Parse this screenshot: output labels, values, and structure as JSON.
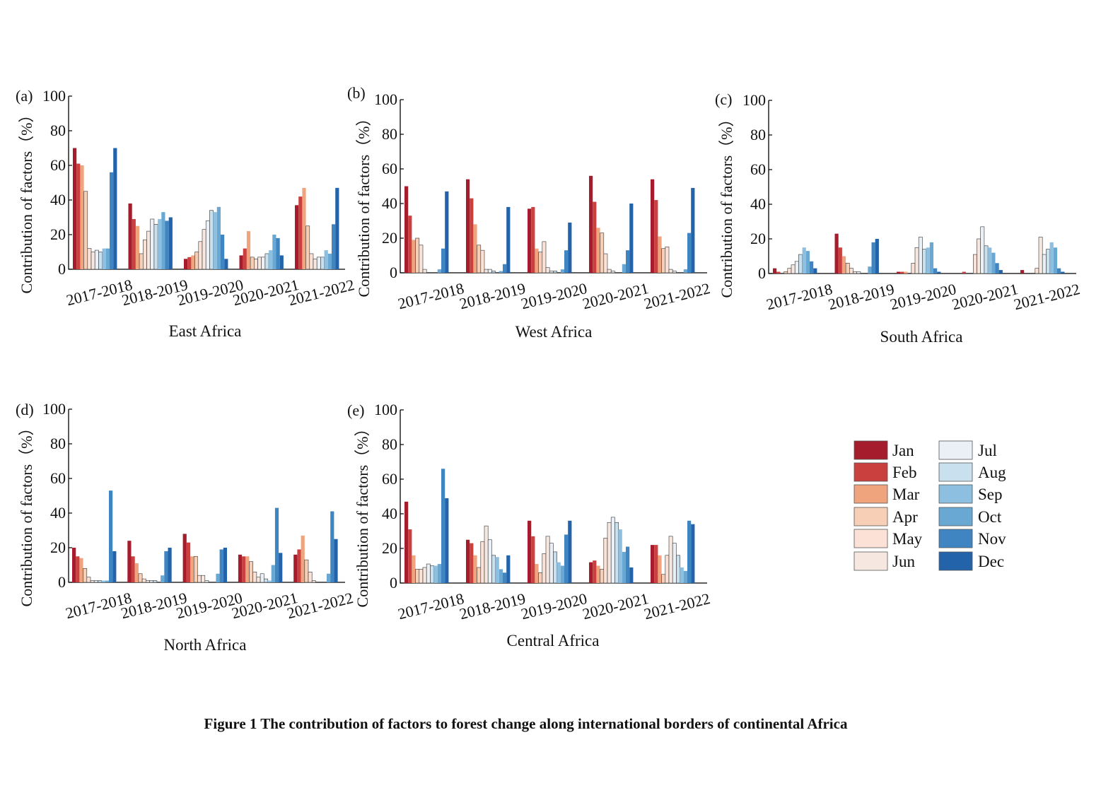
{
  "figure": {
    "caption": "Figure 1  The contribution of factors to forest change along international borders of continental Africa"
  },
  "legend": {
    "months": [
      "Jan",
      "Feb",
      "Mar",
      "Apr",
      "May",
      "Jun",
      "Jul",
      "Aug",
      "Sep",
      "Oct",
      "Nov",
      "Dec"
    ],
    "colors": [
      "#a51c2d",
      "#c9403f",
      "#efa47e",
      "#f7cfb6",
      "#fbe1d6",
      "#f6e8e1",
      "#eaf0f5",
      "#c9e0ee",
      "#8dc0e0",
      "#6aa8d4",
      "#3e85c2",
      "#2363a9"
    ]
  },
  "chart_data": [
    {
      "type": "bar",
      "panel_label": "(a)",
      "name": "East Africa",
      "ylabel": "Contribution of factors（%）",
      "ylim": [
        0,
        100
      ],
      "yticks": [
        "0",
        "20",
        "40",
        "60",
        "80",
        "100"
      ],
      "categories": [
        "2017-2018",
        "2018-2019",
        "2019-2020",
        "2020-2021",
        "2021-2022"
      ],
      "series": [
        {
          "values": [
            70,
            38,
            6,
            8,
            37
          ]
        },
        {
          "values": [
            61,
            29,
            7,
            12,
            42
          ]
        },
        {
          "values": [
            60,
            25,
            8,
            22,
            47
          ]
        },
        {
          "values": [
            45,
            9,
            10,
            7,
            25
          ]
        },
        {
          "values": [
            12,
            17,
            16,
            6,
            9
          ]
        },
        {
          "values": [
            10,
            22,
            23,
            7,
            6
          ]
        },
        {
          "values": [
            11,
            29,
            28,
            7,
            7
          ]
        },
        {
          "values": [
            10,
            26,
            34,
            9,
            7
          ]
        },
        {
          "values": [
            12,
            29,
            33,
            11,
            11
          ]
        },
        {
          "values": [
            12,
            33,
            36,
            20,
            9
          ]
        },
        {
          "values": [
            56,
            28,
            20,
            18,
            26
          ]
        },
        {
          "values": [
            70,
            30,
            6,
            8,
            47
          ]
        }
      ]
    },
    {
      "type": "bar",
      "panel_label": "(b)",
      "name": "West Africa",
      "ylabel": "Contribution of factors（%）",
      "ylim": [
        0,
        100
      ],
      "yticks": [
        "0",
        "20",
        "40",
        "60",
        "80",
        "100"
      ],
      "categories": [
        "2017-2018",
        "2018-2019",
        "2019-2020",
        "2020-2021",
        "2021-2022"
      ],
      "series": [
        {
          "values": [
            50,
            54,
            37,
            56,
            54
          ]
        },
        {
          "values": [
            33,
            43,
            38,
            41,
            42
          ]
        },
        {
          "values": [
            19,
            28,
            14,
            26,
            21
          ]
        },
        {
          "values": [
            20,
            16,
            12,
            23,
            14
          ]
        },
        {
          "values": [
            16,
            13,
            18,
            11,
            15
          ]
        },
        {
          "values": [
            2,
            2,
            3,
            2,
            2
          ]
        },
        {
          "values": [
            0,
            2,
            1,
            1,
            1
          ]
        },
        {
          "values": [
            0,
            1,
            1,
            0,
            0
          ]
        },
        {
          "values": [
            0,
            0,
            0,
            0,
            0
          ]
        },
        {
          "values": [
            2,
            1,
            2,
            5,
            2
          ]
        },
        {
          "values": [
            14,
            5,
            13,
            13,
            23
          ]
        },
        {
          "values": [
            47,
            38,
            29,
            40,
            49
          ]
        }
      ]
    },
    {
      "type": "bar",
      "panel_label": "(c)",
      "name": "South Africa",
      "ylabel": "Contribution of factors（%）",
      "ylim": [
        0,
        100
      ],
      "yticks": [
        "0",
        "20",
        "40",
        "60",
        "80",
        "100"
      ],
      "categories": [
        "2017-2018",
        "2018-2019",
        "2019-2020",
        "2020-2021",
        "2021-2022"
      ],
      "series": [
        {
          "values": [
            3,
            23,
            1,
            0,
            2
          ]
        },
        {
          "values": [
            1,
            15,
            1,
            1,
            0
          ]
        },
        {
          "values": [
            0,
            10,
            1,
            0,
            0
          ]
        },
        {
          "values": [
            1,
            6,
            0,
            0,
            0
          ]
        },
        {
          "values": [
            3,
            3,
            6,
            11,
            3
          ]
        },
        {
          "values": [
            5,
            1,
            15,
            20,
            21
          ]
        },
        {
          "values": [
            7,
            1,
            21,
            27,
            11
          ]
        },
        {
          "values": [
            11,
            0,
            14,
            16,
            14
          ]
        },
        {
          "values": [
            15,
            0,
            15,
            15,
            18
          ]
        },
        {
          "values": [
            13,
            4,
            18,
            12,
            15
          ]
        },
        {
          "values": [
            7,
            18,
            3,
            6,
            3
          ]
        },
        {
          "values": [
            3,
            20,
            1,
            2,
            1
          ]
        }
      ]
    },
    {
      "type": "bar",
      "panel_label": "(d)",
      "name": "North Africa",
      "ylabel": "Contribution of factors（%）",
      "ylim": [
        0,
        100
      ],
      "yticks": [
        "0",
        "20",
        "40",
        "60",
        "80",
        "100"
      ],
      "categories": [
        "2017-2018",
        "2018-2019",
        "2019-2020",
        "2020-2021",
        "2021-2022"
      ],
      "series": [
        {
          "values": [
            20,
            24,
            28,
            16,
            16
          ]
        },
        {
          "values": [
            15,
            15,
            23,
            15,
            19
          ]
        },
        {
          "values": [
            14,
            11,
            15,
            15,
            27
          ]
        },
        {
          "values": [
            8,
            5,
            15,
            12,
            13
          ]
        },
        {
          "values": [
            3,
            2,
            4,
            6,
            6
          ]
        },
        {
          "values": [
            1,
            1,
            4,
            3,
            1
          ]
        },
        {
          "values": [
            1,
            1,
            1,
            5,
            0
          ]
        },
        {
          "values": [
            1,
            1,
            0,
            2,
            0
          ]
        },
        {
          "values": [
            1,
            0,
            0,
            1,
            0
          ]
        },
        {
          "values": [
            1,
            4,
            5,
            10,
            5
          ]
        },
        {
          "values": [
            53,
            18,
            19,
            43,
            41
          ]
        },
        {
          "values": [
            18,
            20,
            20,
            17,
            25
          ]
        }
      ]
    },
    {
      "type": "bar",
      "panel_label": "(e)",
      "name": "Central Africa",
      "ylabel": "Contribution of factors（%）",
      "ylim": [
        0,
        100
      ],
      "yticks": [
        "0",
        "20",
        "40",
        "60",
        "80",
        "100"
      ],
      "categories": [
        "2017-2018",
        "2018-2019",
        "2019-2020",
        "2020-2021",
        "2021-2022"
      ],
      "series": [
        {
          "values": [
            47,
            25,
            36,
            12,
            22
          ]
        },
        {
          "values": [
            31,
            23,
            27,
            13,
            22
          ]
        },
        {
          "values": [
            16,
            16,
            11,
            10,
            16
          ]
        },
        {
          "values": [
            8,
            9,
            6,
            8,
            5
          ]
        },
        {
          "values": [
            8,
            24,
            17,
            26,
            16
          ]
        },
        {
          "values": [
            9,
            33,
            27,
            35,
            27
          ]
        },
        {
          "values": [
            11,
            25,
            23,
            38,
            23
          ]
        },
        {
          "values": [
            10,
            16,
            18,
            35,
            16
          ]
        },
        {
          "values": [
            10,
            15,
            12,
            31,
            9
          ]
        },
        {
          "values": [
            11,
            8,
            10,
            18,
            7
          ]
        },
        {
          "values": [
            66,
            6,
            28,
            21,
            36
          ]
        },
        {
          "values": [
            49,
            16,
            36,
            9,
            34
          ]
        }
      ]
    }
  ]
}
